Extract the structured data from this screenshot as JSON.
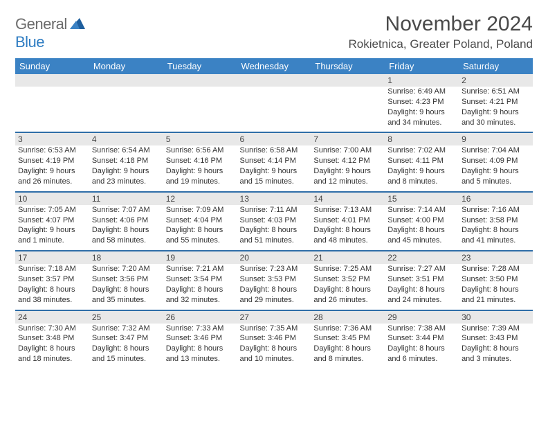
{
  "brand": {
    "general": "General",
    "blue": "Blue"
  },
  "title": "November 2024",
  "location": "Rokietnica, Greater Poland, Poland",
  "colors": {
    "header_bg": "#3b82c4",
    "header_text": "#ffffff",
    "daynum_bg": "#e8e8e8",
    "week_border": "#2f6ea8",
    "text": "#333333",
    "logo_gray": "#6b6b6b",
    "logo_blue": "#2e7cc2",
    "page_bg": "#ffffff"
  },
  "day_headers": [
    "Sunday",
    "Monday",
    "Tuesday",
    "Wednesday",
    "Thursday",
    "Friday",
    "Saturday"
  ],
  "weeks": [
    [
      {
        "n": "",
        "sunrise": "",
        "sunset": "",
        "daylight": ""
      },
      {
        "n": "",
        "sunrise": "",
        "sunset": "",
        "daylight": ""
      },
      {
        "n": "",
        "sunrise": "",
        "sunset": "",
        "daylight": ""
      },
      {
        "n": "",
        "sunrise": "",
        "sunset": "",
        "daylight": ""
      },
      {
        "n": "",
        "sunrise": "",
        "sunset": "",
        "daylight": ""
      },
      {
        "n": "1",
        "sunrise": "Sunrise: 6:49 AM",
        "sunset": "Sunset: 4:23 PM",
        "daylight": "Daylight: 9 hours and 34 minutes."
      },
      {
        "n": "2",
        "sunrise": "Sunrise: 6:51 AM",
        "sunset": "Sunset: 4:21 PM",
        "daylight": "Daylight: 9 hours and 30 minutes."
      }
    ],
    [
      {
        "n": "3",
        "sunrise": "Sunrise: 6:53 AM",
        "sunset": "Sunset: 4:19 PM",
        "daylight": "Daylight: 9 hours and 26 minutes."
      },
      {
        "n": "4",
        "sunrise": "Sunrise: 6:54 AM",
        "sunset": "Sunset: 4:18 PM",
        "daylight": "Daylight: 9 hours and 23 minutes."
      },
      {
        "n": "5",
        "sunrise": "Sunrise: 6:56 AM",
        "sunset": "Sunset: 4:16 PM",
        "daylight": "Daylight: 9 hours and 19 minutes."
      },
      {
        "n": "6",
        "sunrise": "Sunrise: 6:58 AM",
        "sunset": "Sunset: 4:14 PM",
        "daylight": "Daylight: 9 hours and 15 minutes."
      },
      {
        "n": "7",
        "sunrise": "Sunrise: 7:00 AM",
        "sunset": "Sunset: 4:12 PM",
        "daylight": "Daylight: 9 hours and 12 minutes."
      },
      {
        "n": "8",
        "sunrise": "Sunrise: 7:02 AM",
        "sunset": "Sunset: 4:11 PM",
        "daylight": "Daylight: 9 hours and 8 minutes."
      },
      {
        "n": "9",
        "sunrise": "Sunrise: 7:04 AM",
        "sunset": "Sunset: 4:09 PM",
        "daylight": "Daylight: 9 hours and 5 minutes."
      }
    ],
    [
      {
        "n": "10",
        "sunrise": "Sunrise: 7:05 AM",
        "sunset": "Sunset: 4:07 PM",
        "daylight": "Daylight: 9 hours and 1 minute."
      },
      {
        "n": "11",
        "sunrise": "Sunrise: 7:07 AM",
        "sunset": "Sunset: 4:06 PM",
        "daylight": "Daylight: 8 hours and 58 minutes."
      },
      {
        "n": "12",
        "sunrise": "Sunrise: 7:09 AM",
        "sunset": "Sunset: 4:04 PM",
        "daylight": "Daylight: 8 hours and 55 minutes."
      },
      {
        "n": "13",
        "sunrise": "Sunrise: 7:11 AM",
        "sunset": "Sunset: 4:03 PM",
        "daylight": "Daylight: 8 hours and 51 minutes."
      },
      {
        "n": "14",
        "sunrise": "Sunrise: 7:13 AM",
        "sunset": "Sunset: 4:01 PM",
        "daylight": "Daylight: 8 hours and 48 minutes."
      },
      {
        "n": "15",
        "sunrise": "Sunrise: 7:14 AM",
        "sunset": "Sunset: 4:00 PM",
        "daylight": "Daylight: 8 hours and 45 minutes."
      },
      {
        "n": "16",
        "sunrise": "Sunrise: 7:16 AM",
        "sunset": "Sunset: 3:58 PM",
        "daylight": "Daylight: 8 hours and 41 minutes."
      }
    ],
    [
      {
        "n": "17",
        "sunrise": "Sunrise: 7:18 AM",
        "sunset": "Sunset: 3:57 PM",
        "daylight": "Daylight: 8 hours and 38 minutes."
      },
      {
        "n": "18",
        "sunrise": "Sunrise: 7:20 AM",
        "sunset": "Sunset: 3:56 PM",
        "daylight": "Daylight: 8 hours and 35 minutes."
      },
      {
        "n": "19",
        "sunrise": "Sunrise: 7:21 AM",
        "sunset": "Sunset: 3:54 PM",
        "daylight": "Daylight: 8 hours and 32 minutes."
      },
      {
        "n": "20",
        "sunrise": "Sunrise: 7:23 AM",
        "sunset": "Sunset: 3:53 PM",
        "daylight": "Daylight: 8 hours and 29 minutes."
      },
      {
        "n": "21",
        "sunrise": "Sunrise: 7:25 AM",
        "sunset": "Sunset: 3:52 PM",
        "daylight": "Daylight: 8 hours and 26 minutes."
      },
      {
        "n": "22",
        "sunrise": "Sunrise: 7:27 AM",
        "sunset": "Sunset: 3:51 PM",
        "daylight": "Daylight: 8 hours and 24 minutes."
      },
      {
        "n": "23",
        "sunrise": "Sunrise: 7:28 AM",
        "sunset": "Sunset: 3:50 PM",
        "daylight": "Daylight: 8 hours and 21 minutes."
      }
    ],
    [
      {
        "n": "24",
        "sunrise": "Sunrise: 7:30 AM",
        "sunset": "Sunset: 3:48 PM",
        "daylight": "Daylight: 8 hours and 18 minutes."
      },
      {
        "n": "25",
        "sunrise": "Sunrise: 7:32 AM",
        "sunset": "Sunset: 3:47 PM",
        "daylight": "Daylight: 8 hours and 15 minutes."
      },
      {
        "n": "26",
        "sunrise": "Sunrise: 7:33 AM",
        "sunset": "Sunset: 3:46 PM",
        "daylight": "Daylight: 8 hours and 13 minutes."
      },
      {
        "n": "27",
        "sunrise": "Sunrise: 7:35 AM",
        "sunset": "Sunset: 3:46 PM",
        "daylight": "Daylight: 8 hours and 10 minutes."
      },
      {
        "n": "28",
        "sunrise": "Sunrise: 7:36 AM",
        "sunset": "Sunset: 3:45 PM",
        "daylight": "Daylight: 8 hours and 8 minutes."
      },
      {
        "n": "29",
        "sunrise": "Sunrise: 7:38 AM",
        "sunset": "Sunset: 3:44 PM",
        "daylight": "Daylight: 8 hours and 6 minutes."
      },
      {
        "n": "30",
        "sunrise": "Sunrise: 7:39 AM",
        "sunset": "Sunset: 3:43 PM",
        "daylight": "Daylight: 8 hours and 3 minutes."
      }
    ]
  ]
}
